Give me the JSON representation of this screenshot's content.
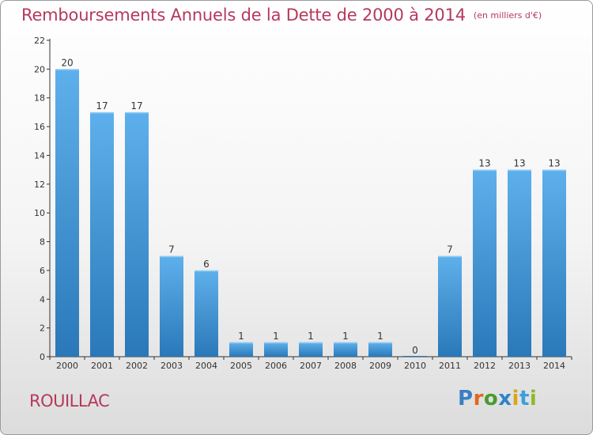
{
  "title": "Remboursements Annuels de la Dette de 2000 à 2014",
  "unit": "(en milliers d'€)",
  "location": "ROUILLAC",
  "logo": "Proxiti",
  "colors": {
    "title": "#b5395c",
    "bar_light": "#5eb0ec",
    "bar_dark": "#2a78b8",
    "axis": "#333333",
    "grid": "#cccccc"
  },
  "chart_data": {
    "type": "bar",
    "title": "Remboursements Annuels de la Dette de 2000 à 2014",
    "subtitle": "(en milliers d'€)",
    "xlabel": "",
    "ylabel": "",
    "categories": [
      "2000",
      "2001",
      "2002",
      "2003",
      "2004",
      "2005",
      "2006",
      "2007",
      "2008",
      "2009",
      "2010",
      "2011",
      "2012",
      "2013",
      "2014"
    ],
    "values": [
      20,
      17,
      17,
      7,
      6,
      1,
      1,
      1,
      1,
      1,
      0,
      7,
      13,
      13,
      13
    ],
    "ylim": [
      0,
      22
    ],
    "yticks": [
      0,
      2,
      4,
      6,
      8,
      10,
      12,
      14,
      16,
      18,
      20,
      22
    ],
    "grid": false,
    "data_labels": true
  }
}
